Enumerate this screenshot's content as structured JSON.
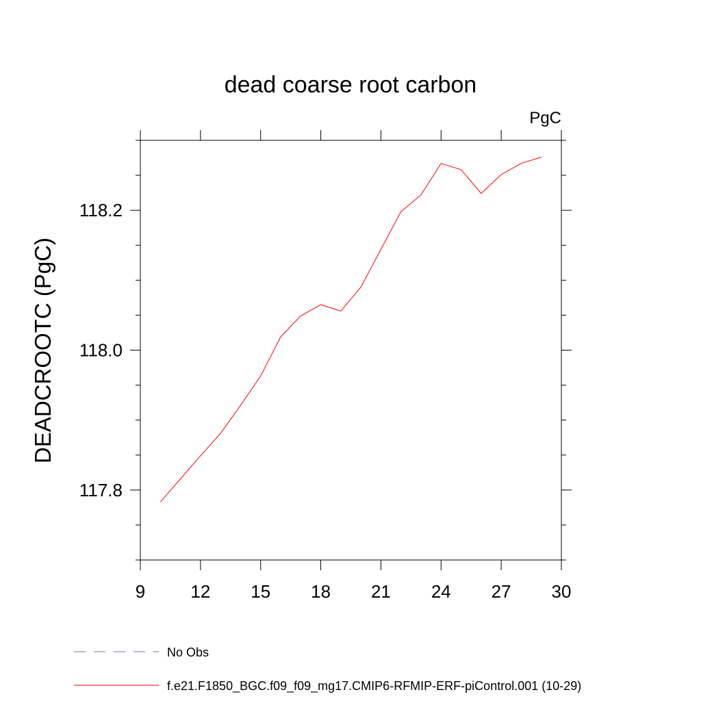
{
  "chart_data": {
    "type": "line",
    "title": "dead coarse root carbon",
    "unit_label": "PgC",
    "ylabel": "DEADCROOTC  (PgC)",
    "xlabel": "",
    "xlim": [
      9,
      30
    ],
    "ylim": [
      117.7,
      118.3
    ],
    "x_ticks": [
      9,
      12,
      15,
      18,
      21,
      24,
      27,
      30
    ],
    "x_tick_labels": [
      "9",
      "12",
      "15",
      "18",
      "21",
      "24",
      "27",
      "30"
    ],
    "y_ticks": [
      117.8,
      118.0,
      118.2
    ],
    "y_tick_labels": [
      "117.8",
      "118.0",
      "118.2"
    ],
    "y_minor_ticks": [
      117.7,
      117.75,
      117.85,
      117.9,
      117.95,
      118.05,
      118.1,
      118.15,
      118.25,
      118.3
    ],
    "grid": false,
    "legend_position": "bottom-left",
    "series": [
      {
        "name": "f.e21.F1850_BGC.f09_f09_mg17.CMIP6-RFMIP-ERF-piControl.001 (10-29)",
        "color": "#ff0000",
        "line_style": "solid",
        "x": [
          10,
          11,
          12,
          13,
          14,
          15,
          16,
          17,
          18,
          19,
          20,
          21,
          22,
          23,
          24,
          25,
          26,
          27,
          28,
          29
        ],
        "values": [
          117.783,
          117.816,
          117.849,
          117.881,
          117.921,
          117.963,
          118.019,
          118.049,
          118.065,
          118.056,
          118.09,
          118.144,
          118.198,
          118.222,
          118.267,
          118.258,
          118.224,
          118.251,
          118.267,
          118.276
        ]
      }
    ],
    "legend": [
      {
        "label": "No Obs",
        "color": "#7b68c8",
        "line_style": "dashed"
      },
      {
        "label": "f.e21.F1850_BGC.f09_f09_mg17.CMIP6-RFMIP-ERF-piControl.001 (10-29)",
        "color": "#ff0000",
        "line_style": "solid"
      }
    ]
  }
}
